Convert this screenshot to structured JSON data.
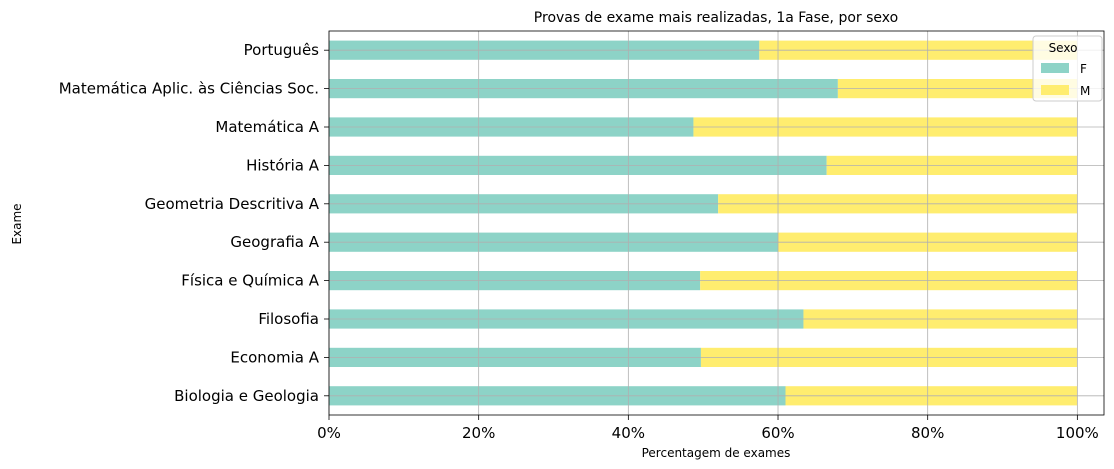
{
  "chart_data": {
    "type": "bar",
    "orientation": "horizontal",
    "stacked": true,
    "title": "Provas de exame mais realizadas, 1a Fase, por sexo",
    "xlabel": "Percentagem de exames",
    "ylabel": "Exame",
    "categories": [
      "Biologia e Geologia",
      "Economia A",
      "Filosofia",
      "Física e Química A",
      "Geografia A",
      "Geometria Descritiva A",
      "História A",
      "Matemática A",
      "Matemática Aplic. às Ciências Soc.",
      "Português"
    ],
    "series": [
      {
        "name": "F",
        "color": "#8dd3c7",
        "values": [
          0.61,
          0.497,
          0.634,
          0.496,
          0.6,
          0.52,
          0.665,
          0.487,
          0.68,
          0.575
        ]
      },
      {
        "name": "M",
        "color": "#ffed6f",
        "values": [
          0.39,
          0.503,
          0.366,
          0.504,
          0.4,
          0.48,
          0.335,
          0.513,
          0.32,
          0.425
        ]
      }
    ],
    "xlim": [
      0,
      1.0356
    ],
    "xticks": [
      0,
      0.2,
      0.4,
      0.6,
      0.8,
      1.0
    ],
    "xtick_labels": [
      "0%",
      "20%",
      "40%",
      "60%",
      "80%",
      "100%"
    ],
    "grid": true,
    "legend": {
      "title": "Sexo",
      "placement": "top-right"
    }
  }
}
